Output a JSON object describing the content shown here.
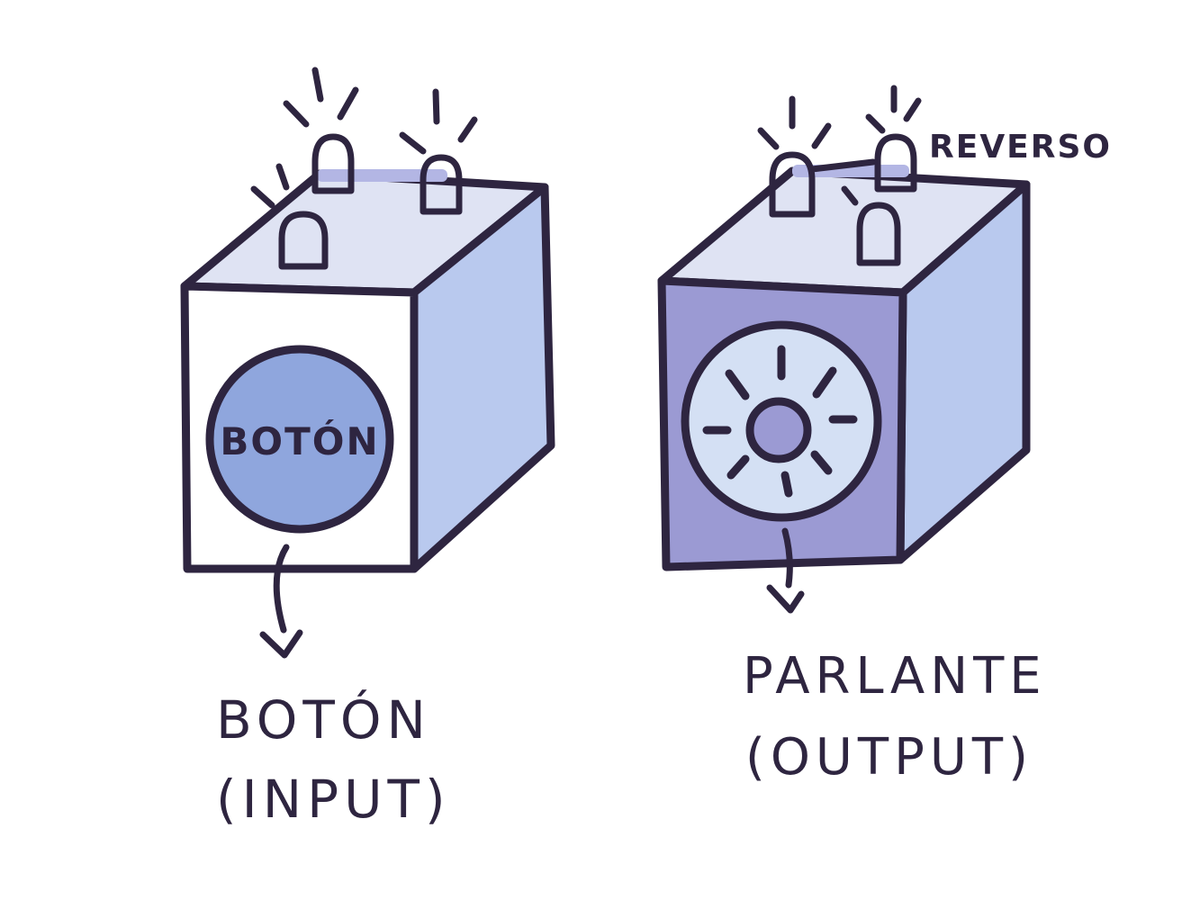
{
  "colors": {
    "ink": "#2e2540",
    "top_face": "#dfe3f3",
    "side_face": "#b9c9ee",
    "input_front": "#ffffff",
    "output_front": "#9b9ad3",
    "button_fill": "#8fa6dd",
    "speaker_fill": "#d4e0f4",
    "speaker_center": "#9b9ad3",
    "led_fill": "#ffffff",
    "led_base": "#b3b6e4"
  },
  "input_block": {
    "button_text": "BOTÓN",
    "label_line1": "BOTÓN",
    "label_line2": "(INPUT)"
  },
  "output_block": {
    "side_note": "REVERSO",
    "label_line1": "PARLANTE",
    "label_line2": "(OUTPUT)"
  }
}
